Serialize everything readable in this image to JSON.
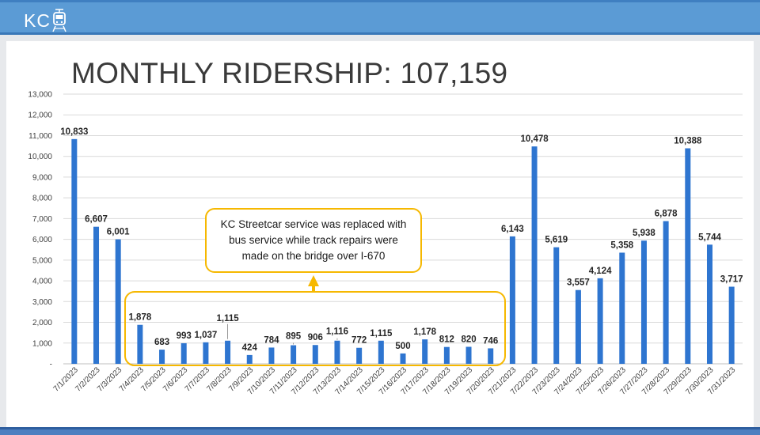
{
  "header": {
    "logo_text": "KC",
    "logo_icon": "streetcar-icon",
    "bar_color": "#5b9bd5"
  },
  "slide": {
    "title": "MONTHLY RIDERSHIP: 107,159"
  },
  "annotation": {
    "text": "KC Streetcar service was replaced with bus service while track repairs were made on the bridge over I-670",
    "highlight_color": "#f6b800"
  },
  "chart_data": {
    "type": "bar",
    "title": "",
    "xlabel": "",
    "ylabel": "",
    "ylim": [
      0,
      13000
    ],
    "y_ticks": [
      "-",
      "1,000",
      "2,000",
      "3,000",
      "4,000",
      "5,000",
      "6,000",
      "7,000",
      "8,000",
      "9,000",
      "10,000",
      "11,000",
      "12,000",
      "13,000"
    ],
    "grid": true,
    "bar_color": "#2e75d0",
    "categories": [
      "7/1/2023",
      "7/2/2023",
      "7/3/2023",
      "7/4/2023",
      "7/5/2023",
      "7/6/2023",
      "7/7/2023",
      "7/8/2023",
      "7/9/2023",
      "7/10/2023",
      "7/11/2023",
      "7/12/2023",
      "7/13/2023",
      "7/14/2023",
      "7/15/2023",
      "7/16/2023",
      "7/17/2023",
      "7/18/2023",
      "7/19/2023",
      "7/20/2023",
      "7/21/2023",
      "7/22/2023",
      "7/23/2023",
      "7/24/2023",
      "7/25/2023",
      "7/26/2023",
      "7/27/2023",
      "7/28/2023",
      "7/29/2023",
      "7/30/2023",
      "7/31/2023"
    ],
    "values": [
      10833,
      6607,
      6001,
      1878,
      683,
      993,
      1037,
      1115,
      424,
      784,
      895,
      906,
      1116,
      772,
      1115,
      500,
      1178,
      812,
      820,
      746,
      6143,
      10478,
      5619,
      3557,
      4124,
      5358,
      5938,
      6878,
      10388,
      5744,
      3717
    ],
    "value_labels": [
      "10,833",
      "6,607",
      "6,001",
      "1,878",
      "683",
      "993",
      "1,037",
      "1,115",
      "424",
      "784",
      "895",
      "906",
      "1,116",
      "772",
      "1,115",
      "500",
      "1,178",
      "812",
      "820",
      "746",
      "6,143",
      "10,478",
      "5,619",
      "3,557",
      "4,124",
      "5,358",
      "5,938",
      "6,878",
      "10,388",
      "5,744",
      "3,717"
    ]
  }
}
